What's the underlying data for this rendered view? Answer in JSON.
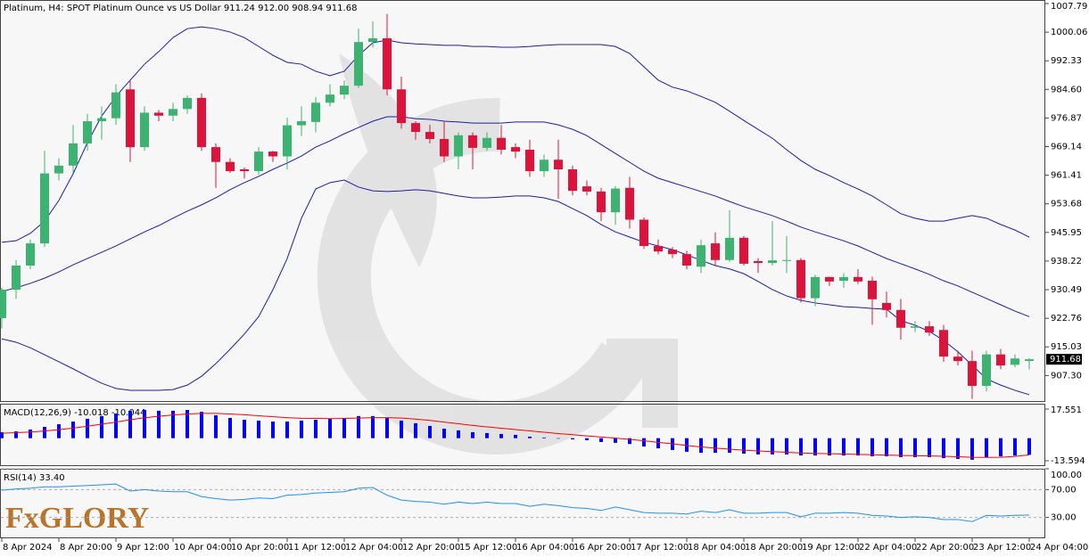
{
  "chart_data": [
    {
      "type": "candlestick",
      "title": "Platinum, H4:  SPOT Platinum Ounce vs US Dollar  911.24 912.00 908.94 911.68",
      "categories": [
        "8 Apr 2024",
        null,
        null,
        null,
        "8 Apr 20:00",
        null,
        null,
        null,
        "9 Apr 12:00",
        null,
        null,
        null,
        "10 Apr 04:00",
        null,
        null,
        null,
        "10 Apr 20:00",
        null,
        null,
        null,
        "11 Apr 12:00",
        null,
        null,
        null,
        "12 Apr 04:00",
        null,
        null,
        null,
        "12 Apr 20:00",
        null,
        null,
        null,
        "15 Apr 12:00",
        null,
        null,
        null,
        "16 Apr 04:00",
        null,
        null,
        null,
        "16 Apr 20:00",
        null,
        null,
        null,
        "17 Apr 12:00",
        null,
        null,
        null,
        "18 Apr 04:00",
        null,
        null,
        null,
        "18 Apr 20:00",
        null,
        null,
        null,
        "19 Apr 12:00",
        null,
        null,
        null,
        "22 Apr 04:00",
        null,
        null,
        null,
        "22 Apr 20:00",
        null,
        null,
        null,
        "23 Apr 12:00",
        null,
        null,
        null,
        "24 Apr 04:00"
      ],
      "open": [
        922.8,
        930.5,
        937,
        943,
        961.9,
        964,
        970,
        976,
        976.8,
        984.6,
        969,
        978.3,
        977.5,
        979.3,
        982.3,
        969,
        965,
        963,
        962.5,
        967.8,
        966.5,
        974.9,
        975.8,
        981,
        983.2,
        985.6,
        997.4,
        998.4,
        984.6,
        975.5,
        973.1,
        971.2,
        966.5,
        972.2,
        968.8,
        971.5,
        969,
        968.3,
        962.5,
        965.6,
        963,
        958.4,
        957,
        951.4,
        958,
        949.4,
        942.3,
        941.3,
        940.1,
        936.7,
        943,
        938.5,
        944.5,
        938.2,
        937.7,
        938.4,
        938.5,
        928.2,
        933.9,
        932.9,
        933.9,
        932.9,
        926.9,
        925,
        920.2,
        920.6,
        919.6,
        912.4,
        911.2,
        904.5,
        913,
        910.2,
        911.24
      ],
      "high": [
        931,
        938.5,
        944,
        968,
        966,
        975,
        978,
        980,
        986,
        987,
        980,
        979,
        981,
        983,
        983.5,
        970,
        966,
        963.5,
        969,
        968,
        977,
        980,
        982.5,
        986,
        987,
        1001,
        1003,
        1005,
        988,
        976,
        975,
        976,
        973,
        973,
        973,
        975,
        970,
        971,
        967,
        971,
        964,
        960,
        958,
        958.5,
        961,
        950,
        944,
        942,
        941,
        944,
        946,
        952,
        945,
        939,
        949,
        945,
        939,
        934.5,
        934,
        935,
        936,
        934,
        930,
        928,
        922,
        922,
        921,
        914,
        914,
        914,
        914.5,
        913,
        912
      ],
      "low": [
        920,
        928,
        936,
        942,
        960,
        962,
        968,
        971,
        975,
        965,
        968,
        976,
        976,
        978,
        968,
        958,
        962,
        960.5,
        961.5,
        965,
        963,
        972,
        973,
        980,
        982,
        985,
        996,
        983,
        974,
        971,
        970,
        965,
        963,
        963,
        968,
        967,
        966,
        961,
        961,
        955,
        956,
        956,
        949,
        948,
        947,
        941.5,
        940,
        939,
        936,
        935,
        937,
        938,
        937,
        935,
        937,
        935,
        927,
        926,
        931.5,
        931,
        932,
        921,
        923,
        917,
        919,
        918,
        911,
        910,
        901,
        903,
        909,
        909.5,
        908.94
      ],
      "close": [
        930.5,
        937,
        943,
        961.9,
        964,
        970,
        976,
        976.8,
        983.8,
        969,
        978.3,
        977.5,
        979.3,
        982.3,
        969,
        965,
        962.5,
        962.5,
        967.8,
        966.5,
        974.9,
        976,
        981,
        983.2,
        985.6,
        997.4,
        998.4,
        984.6,
        975.5,
        973.1,
        971.2,
        966.5,
        972.2,
        968.8,
        971.5,
        968.3,
        967.8,
        962.5,
        965.6,
        963,
        957.2,
        957,
        951.4,
        957.8,
        949.4,
        942.3,
        940.8,
        940.1,
        937,
        942.5,
        938.5,
        944.5,
        937.5,
        937.7,
        938.4,
        938.5,
        928.2,
        933.9,
        932.7,
        933.9,
        932.7,
        927.9,
        925,
        920.2,
        920.6,
        918.9,
        912.4,
        911.2,
        904.5,
        913,
        910,
        911.9,
        911.68
      ],
      "up_color": "#3cb371",
      "down_color": "#dc143c",
      "overlays": [
        {
          "color": "#1c1ca8",
          "values": [
            943.3,
            943.7,
            945.7,
            949.0,
            954.6,
            961.8,
            970.2,
            977.4,
            982.7,
            987.1,
            991.4,
            994.8,
            998.6,
            1001.0,
            1001.5,
            1001.0,
            1000.1,
            998.6,
            996.2,
            993.8,
            991.9,
            991.4,
            989.5,
            988.3,
            989.5,
            993.8,
            997.2,
            997.9,
            997.2,
            996.9,
            996.7,
            996.5,
            996.5,
            996.2,
            996.2,
            996.0,
            996.0,
            996.2,
            996.5,
            996.7,
            996.7,
            996.7,
            996.7,
            996.2,
            994.3,
            990.7,
            987.1,
            985.2,
            984.2,
            982.7,
            981.1,
            978.7,
            976.2,
            973.8,
            971.4,
            968.3,
            965.4,
            963.0,
            961.3,
            959.4,
            957.7,
            955.8,
            953.4,
            951.0,
            949.8,
            949.0,
            949.0,
            949.8,
            950.5,
            949.8,
            948.1,
            946.6,
            944.7
          ]
        },
        {
          "color": "#1c1ca8",
          "values": [
            930.0,
            931.0,
            932.2,
            933.6,
            935.3,
            937.2,
            938.9,
            940.6,
            942.3,
            944.2,
            946.1,
            947.8,
            949.8,
            951.7,
            953.4,
            955.3,
            957.5,
            959.4,
            961.1,
            963.0,
            964.7,
            966.6,
            969.0,
            970.7,
            972.6,
            974.3,
            976.0,
            977.2,
            977.2,
            976.7,
            976.5,
            976.0,
            975.8,
            975.5,
            975.5,
            975.5,
            975.8,
            975.8,
            975.8,
            975.0,
            973.8,
            972.1,
            969.7,
            967.3,
            964.9,
            962.5,
            960.6,
            959.4,
            958.2,
            957.0,
            955.8,
            954.3,
            952.9,
            951.7,
            950.5,
            949.0,
            947.4,
            946.1,
            944.9,
            943.7,
            942.3,
            940.6,
            938.9,
            937.5,
            936.1,
            934.6,
            932.9,
            931.5,
            929.8,
            928.1,
            926.4,
            924.7,
            923.2
          ]
        },
        {
          "color": "#1c1ca8",
          "values": [
            917.2,
            916.3,
            914.8,
            912.9,
            911.0,
            909.1,
            907.1,
            905.2,
            903.8,
            903.3,
            903.3,
            903.3,
            903.5,
            904.7,
            907.1,
            910.5,
            914.4,
            918.5,
            923.2,
            930.5,
            938.9,
            949.8,
            957.7,
            959.4,
            960.1,
            958.2,
            957.2,
            957.0,
            957.2,
            957.5,
            957.2,
            956.5,
            955.8,
            955.3,
            955.3,
            955.5,
            955.8,
            955.8,
            955.3,
            954.3,
            952.4,
            950.5,
            948.1,
            946.1,
            944.7,
            943.3,
            942.3,
            941.3,
            939.9,
            938.4,
            937.0,
            936.1,
            934.8,
            932.7,
            930.5,
            928.8,
            927.6,
            926.9,
            926.4,
            925.9,
            925.7,
            925.4,
            925.2,
            922.1,
            920.9,
            919.2,
            916.8,
            913.7,
            910.1,
            906.4,
            904.7,
            903.3,
            902.1
          ]
        }
      ],
      "ylim": [
        900.4,
        1008.75
      ],
      "yticks": [
        1007.79,
        1000.06,
        992.33,
        {
          "value": 984.6,
          "label": "984.60"
        },
        976.87,
        969.14,
        961.41,
        953.68,
        945.95,
        938.22,
        930.49,
        922.76,
        915.03,
        {
          "value": 907.3,
          "label": "907.30"
        }
      ],
      "last_price": 911.68
    },
    {
      "type": "macd",
      "title": "MACD(12,26,9) -10.018 -10.044",
      "histogram": {
        "color": "#0000ff",
        "values": [
          3.6,
          4.1,
          5.2,
          6.8,
          8.4,
          10.0,
          11.7,
          13.3,
          14.9,
          16.5,
          17.0,
          16.5,
          16.5,
          17.0,
          15.9,
          13.8,
          12.2,
          11.1,
          10.6,
          10.0,
          10.0,
          10.6,
          11.1,
          11.7,
          12.2,
          13.3,
          13.3,
          12.2,
          10.6,
          9.0,
          7.4,
          5.7,
          4.7,
          3.6,
          3.1,
          2.5,
          2.0,
          0.9,
          0.4,
          -0.2,
          -0.7,
          -1.2,
          -2.3,
          -2.8,
          -3.5,
          -5.0,
          -6.1,
          -7.1,
          -8.2,
          -8.8,
          -8.8,
          -8.8,
          -9.3,
          -9.8,
          -9.8,
          -9.8,
          -10.4,
          -10.4,
          -10.4,
          -10.4,
          -10.4,
          -10.9,
          -10.9,
          -11.4,
          -11.4,
          -11.4,
          -12.0,
          -12.5,
          -13.0,
          -11.5,
          -11.0,
          -10.5,
          -10.018
        ]
      },
      "signal": {
        "color": "#ff0000",
        "values": [
          3.0,
          3.3,
          3.7,
          4.3,
          5.1,
          6.1,
          7.2,
          8.4,
          9.7,
          11.1,
          12.3,
          13.2,
          14.0,
          14.6,
          14.9,
          14.9,
          14.6,
          14.1,
          13.5,
          12.9,
          12.4,
          12.0,
          11.9,
          11.8,
          11.9,
          12.1,
          12.4,
          12.4,
          12.1,
          11.5,
          10.7,
          9.7,
          8.7,
          7.7,
          6.8,
          6.0,
          5.2,
          4.4,
          3.6,
          2.8,
          2.1,
          1.4,
          0.7,
          0.0,
          -0.7,
          -1.6,
          -2.5,
          -3.4,
          -4.4,
          -5.3,
          -6.0,
          -6.6,
          -7.2,
          -7.7,
          -8.1,
          -8.5,
          -8.9,
          -9.2,
          -9.4,
          -9.6,
          -9.8,
          -10.0,
          -10.2,
          -10.4,
          -10.6,
          -10.7,
          -10.9,
          -11.2,
          -11.5,
          -11.6,
          -11.5,
          -11.0,
          -10.044
        ]
      },
      "ylim": [
        -16.82,
        20.77
      ],
      "yticks": [
        17.551,
        -13.594
      ]
    },
    {
      "type": "rsi",
      "title": "RSI(14) 33.40",
      "color": "#1e90ff",
      "values": [
        69,
        71,
        72,
        74,
        74,
        75,
        76,
        77,
        78,
        68,
        70,
        68,
        67,
        67,
        60,
        57,
        55,
        56,
        58,
        57,
        62,
        63,
        65,
        66,
        67,
        72,
        73,
        62,
        55,
        53,
        52,
        49,
        52,
        50,
        52,
        50,
        50,
        46,
        49,
        47,
        44,
        43,
        40,
        45,
        41,
        37,
        36,
        36,
        35,
        39,
        37,
        41,
        36,
        36,
        37,
        37,
        31,
        36,
        36,
        37,
        36,
        33,
        32,
        30,
        31,
        30,
        27,
        27,
        24,
        33,
        32,
        33,
        33.4
      ],
      "ylim": [
        0,
        100
      ],
      "yticks": [
        {
          "value": 100,
          "label": "100.00"
        },
        {
          "value": 70,
          "label": "70.00"
        },
        {
          "value": 30,
          "label": "30.00"
        }
      ]
    }
  ],
  "logo": "FxGLORY"
}
